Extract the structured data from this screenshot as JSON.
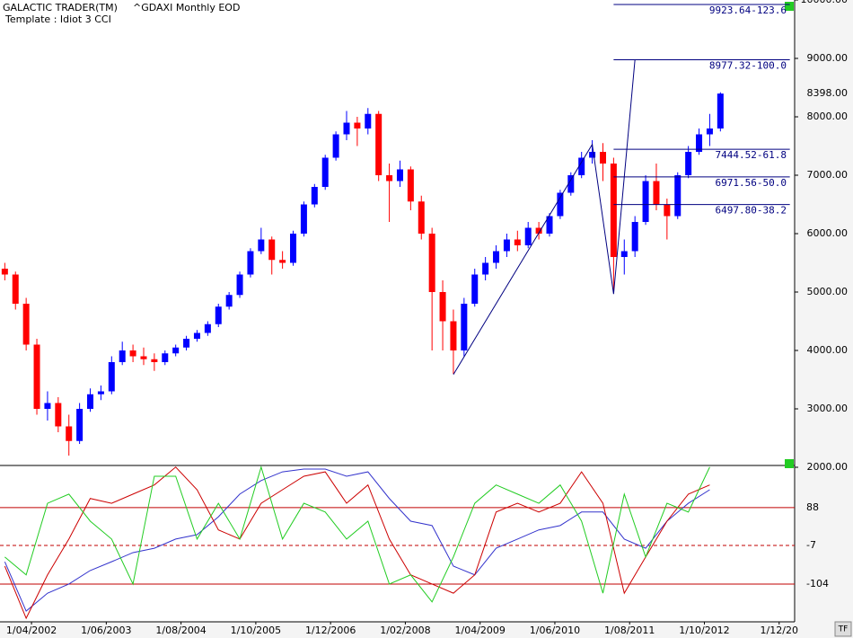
{
  "header": {
    "app": "GALACTIC TRADER(TM)",
    "symbol": "^GDAXI Monthly EOD",
    "template": "Template : Idiot 3 CCI",
    "button": "TF"
  },
  "chart_data": {
    "type": "candlestick",
    "up_color": "#0000ff",
    "down_color": "#ff0000",
    "xlim": [
      -5.9,
      142.9
    ],
    "ylim": [
      2000,
      10000
    ],
    "yticks": [
      {
        "value": 2000,
        "label": "2000.00"
      },
      {
        "value": 3000,
        "label": "3000.00"
      },
      {
        "value": 4000,
        "label": "4000.00"
      },
      {
        "value": 5000,
        "label": "5000.00"
      },
      {
        "value": 6000,
        "label": "6000.00"
      },
      {
        "value": 7000,
        "label": "7000.00"
      },
      {
        "value": 8000,
        "label": "8000.00"
      },
      {
        "value": 9000,
        "label": "9000.00"
      },
      {
        "value": 10000,
        "label": "10000.00"
      }
    ],
    "xticks": [
      {
        "value": 0,
        "label": "1/04/2002"
      },
      {
        "value": 14,
        "label": "1/06/2003"
      },
      {
        "value": 28,
        "label": "1/08/2004"
      },
      {
        "value": 42,
        "label": "1/10/2005"
      },
      {
        "value": 56,
        "label": "1/12/2006"
      },
      {
        "value": 70,
        "label": "1/02/2008"
      },
      {
        "value": 84,
        "label": "1/04/2009"
      },
      {
        "value": 98,
        "label": "1/06/2010"
      },
      {
        "value": 112,
        "label": "1/08/2011"
      },
      {
        "value": 126,
        "label": "1/10/2012"
      },
      {
        "value": 140,
        "label": "1/12/20"
      }
    ],
    "x": [
      -5,
      -3,
      -1,
      1,
      3,
      5,
      7,
      9,
      11,
      13,
      15,
      17,
      19,
      21,
      23,
      25,
      27,
      29,
      31,
      33,
      35,
      37,
      39,
      41,
      43,
      45,
      47,
      49,
      51,
      53,
      55,
      57,
      59,
      61,
      63,
      65,
      67,
      69,
      71,
      73,
      75,
      77,
      79,
      81,
      83,
      85,
      87,
      89,
      91,
      93,
      95,
      97,
      99,
      101,
      103,
      105,
      107,
      109,
      111,
      113,
      115,
      117,
      119,
      121,
      123,
      125,
      127,
      129
    ],
    "candles": [
      [
        5400,
        5500,
        5200,
        5300
      ],
      [
        5300,
        5350,
        4700,
        4800
      ],
      [
        4800,
        4900,
        4000,
        4100
      ],
      [
        4100,
        4200,
        2900,
        3000
      ],
      [
        3000,
        3300,
        2800,
        3100
      ],
      [
        3100,
        3200,
        2600,
        2700
      ],
      [
        2700,
        2900,
        2200,
        2450
      ],
      [
        2450,
        3100,
        2400,
        3000
      ],
      [
        3000,
        3350,
        2950,
        3250
      ],
      [
        3250,
        3400,
        3150,
        3300
      ],
      [
        3300,
        3900,
        3250,
        3800
      ],
      [
        3800,
        4150,
        3750,
        4000
      ],
      [
        4000,
        4100,
        3800,
        3900
      ],
      [
        3900,
        4050,
        3750,
        3850
      ],
      [
        3850,
        3950,
        3650,
        3800
      ],
      [
        3800,
        4000,
        3750,
        3950
      ],
      [
        3950,
        4100,
        3900,
        4050
      ],
      [
        4050,
        4250,
        4000,
        4200
      ],
      [
        4200,
        4350,
        4150,
        4300
      ],
      [
        4300,
        4500,
        4250,
        4450
      ],
      [
        4450,
        4800,
        4400,
        4750
      ],
      [
        4750,
        5000,
        4700,
        4950
      ],
      [
        4950,
        5350,
        4900,
        5300
      ],
      [
        5300,
        5750,
        5250,
        5700
      ],
      [
        5700,
        6100,
        5650,
        5900
      ],
      [
        5900,
        5950,
        5300,
        5550
      ],
      [
        5550,
        5700,
        5400,
        5500
      ],
      [
        5500,
        6050,
        5450,
        6000
      ],
      [
        6000,
        6550,
        5950,
        6500
      ],
      [
        6500,
        6850,
        6450,
        6800
      ],
      [
        6800,
        7350,
        6750,
        7300
      ],
      [
        7300,
        7750,
        7250,
        7700
      ],
      [
        7700,
        8100,
        7600,
        7900
      ],
      [
        7900,
        8000,
        7500,
        7800
      ],
      [
        7800,
        8150,
        7700,
        8050
      ],
      [
        8050,
        8100,
        6900,
        7000
      ],
      [
        7000,
        7200,
        6200,
        6900
      ],
      [
        6900,
        7250,
        6800,
        7100
      ],
      [
        7100,
        7150,
        6400,
        6550
      ],
      [
        6550,
        6650,
        5900,
        6000
      ],
      [
        6000,
        6100,
        4000,
        5000
      ],
      [
        5000,
        5200,
        4000,
        4500
      ],
      [
        4500,
        4700,
        3600,
        4000
      ],
      [
        4000,
        4900,
        3900,
        4800
      ],
      [
        4800,
        5400,
        4750,
        5300
      ],
      [
        5300,
        5600,
        5200,
        5500
      ],
      [
        5500,
        5800,
        5400,
        5700
      ],
      [
        5700,
        6000,
        5600,
        5900
      ],
      [
        5900,
        6050,
        5700,
        5800
      ],
      [
        5800,
        6200,
        5750,
        6100
      ],
      [
        6100,
        6200,
        5900,
        6000
      ],
      [
        6000,
        6350,
        5950,
        6300
      ],
      [
        6300,
        6750,
        6250,
        6700
      ],
      [
        6700,
        7050,
        6650,
        7000
      ],
      [
        7000,
        7400,
        6950,
        7300
      ],
      [
        7300,
        7600,
        7200,
        7400
      ],
      [
        7400,
        7550,
        6900,
        7200
      ],
      [
        7200,
        7300,
        5000,
        5600
      ],
      [
        5600,
        5900,
        5300,
        5700
      ],
      [
        5700,
        6300,
        5600,
        6200
      ],
      [
        6200,
        7000,
        6150,
        6900
      ],
      [
        6900,
        7200,
        6400,
        6500
      ],
      [
        6500,
        6600,
        5900,
        6300
      ],
      [
        6300,
        7050,
        6250,
        7000
      ],
      [
        7000,
        7500,
        6950,
        7400
      ],
      [
        7400,
        7800,
        7350,
        7700
      ],
      [
        7700,
        8050,
        7500,
        7800
      ],
      [
        7800,
        8420,
        7750,
        8398
      ]
    ],
    "last_price": {
      "value": 8398,
      "label": "8398.00"
    },
    "fib_levels": [
      {
        "value": 9923.64,
        "label": "9923.64-123.6"
      },
      {
        "value": 8977.32,
        "label": "8977.32-100.0"
      },
      {
        "value": 7444.52,
        "label": "7444.52-61.8"
      },
      {
        "value": 6971.56,
        "label": "6971.56-50.0"
      },
      {
        "value": 6497.8,
        "label": "6497.80-38.2"
      }
    ],
    "fib_x": [
      109,
      142
    ],
    "trendline": {
      "x": [
        79,
        105,
        109,
        113
      ],
      "values": [
        3588,
        7528,
        4966,
        8977
      ],
      "color": "#000080"
    },
    "indicator": {
      "ylim": [
        -199,
        194
      ],
      "yticks": [
        88,
        -7,
        -104
      ],
      "level_color": "#c00000",
      "x": [
        -5,
        -1,
        3,
        7,
        11,
        15,
        19,
        23,
        27,
        31,
        35,
        39,
        43,
        47,
        51,
        55,
        59,
        63,
        67,
        71,
        75,
        79,
        83,
        87,
        91,
        95,
        99,
        103,
        107,
        111,
        115,
        119,
        123,
        127
      ],
      "series": [
        {
          "name": "blue",
          "color": "#3333cc",
          "values": [
            -48,
            -172,
            -127,
            -104,
            -70,
            -48,
            -25,
            -14,
            9,
            20,
            65,
            122,
            156,
            178,
            185,
            185,
            167,
            178,
            111,
            54,
            43,
            -59,
            -81,
            -14,
            9,
            32,
            43,
            77,
            77,
            9,
            -14,
            54,
            99,
            133
          ]
        },
        {
          "name": "red",
          "color": "#cc0000",
          "values": [
            -59,
            -190,
            -81,
            9,
            111,
            99,
            122,
            145,
            190,
            133,
            32,
            9,
            99,
            133,
            167,
            178,
            99,
            145,
            9,
            -81,
            -104,
            -127,
            -81,
            77,
            99,
            77,
            99,
            178,
            99,
            -127,
            -36,
            54,
            122,
            145
          ]
        },
        {
          "name": "green",
          "color": "#22cc22",
          "values": [
            -36,
            -81,
            99,
            122,
            54,
            9,
            -104,
            167,
            167,
            9,
            99,
            9,
            190,
            9,
            99,
            77,
            9,
            54,
            -104,
            -81,
            -149,
            -36,
            99,
            145,
            122,
            99,
            145,
            54,
            -127,
            122,
            -36,
            99,
            77,
            190
          ]
        }
      ]
    }
  }
}
